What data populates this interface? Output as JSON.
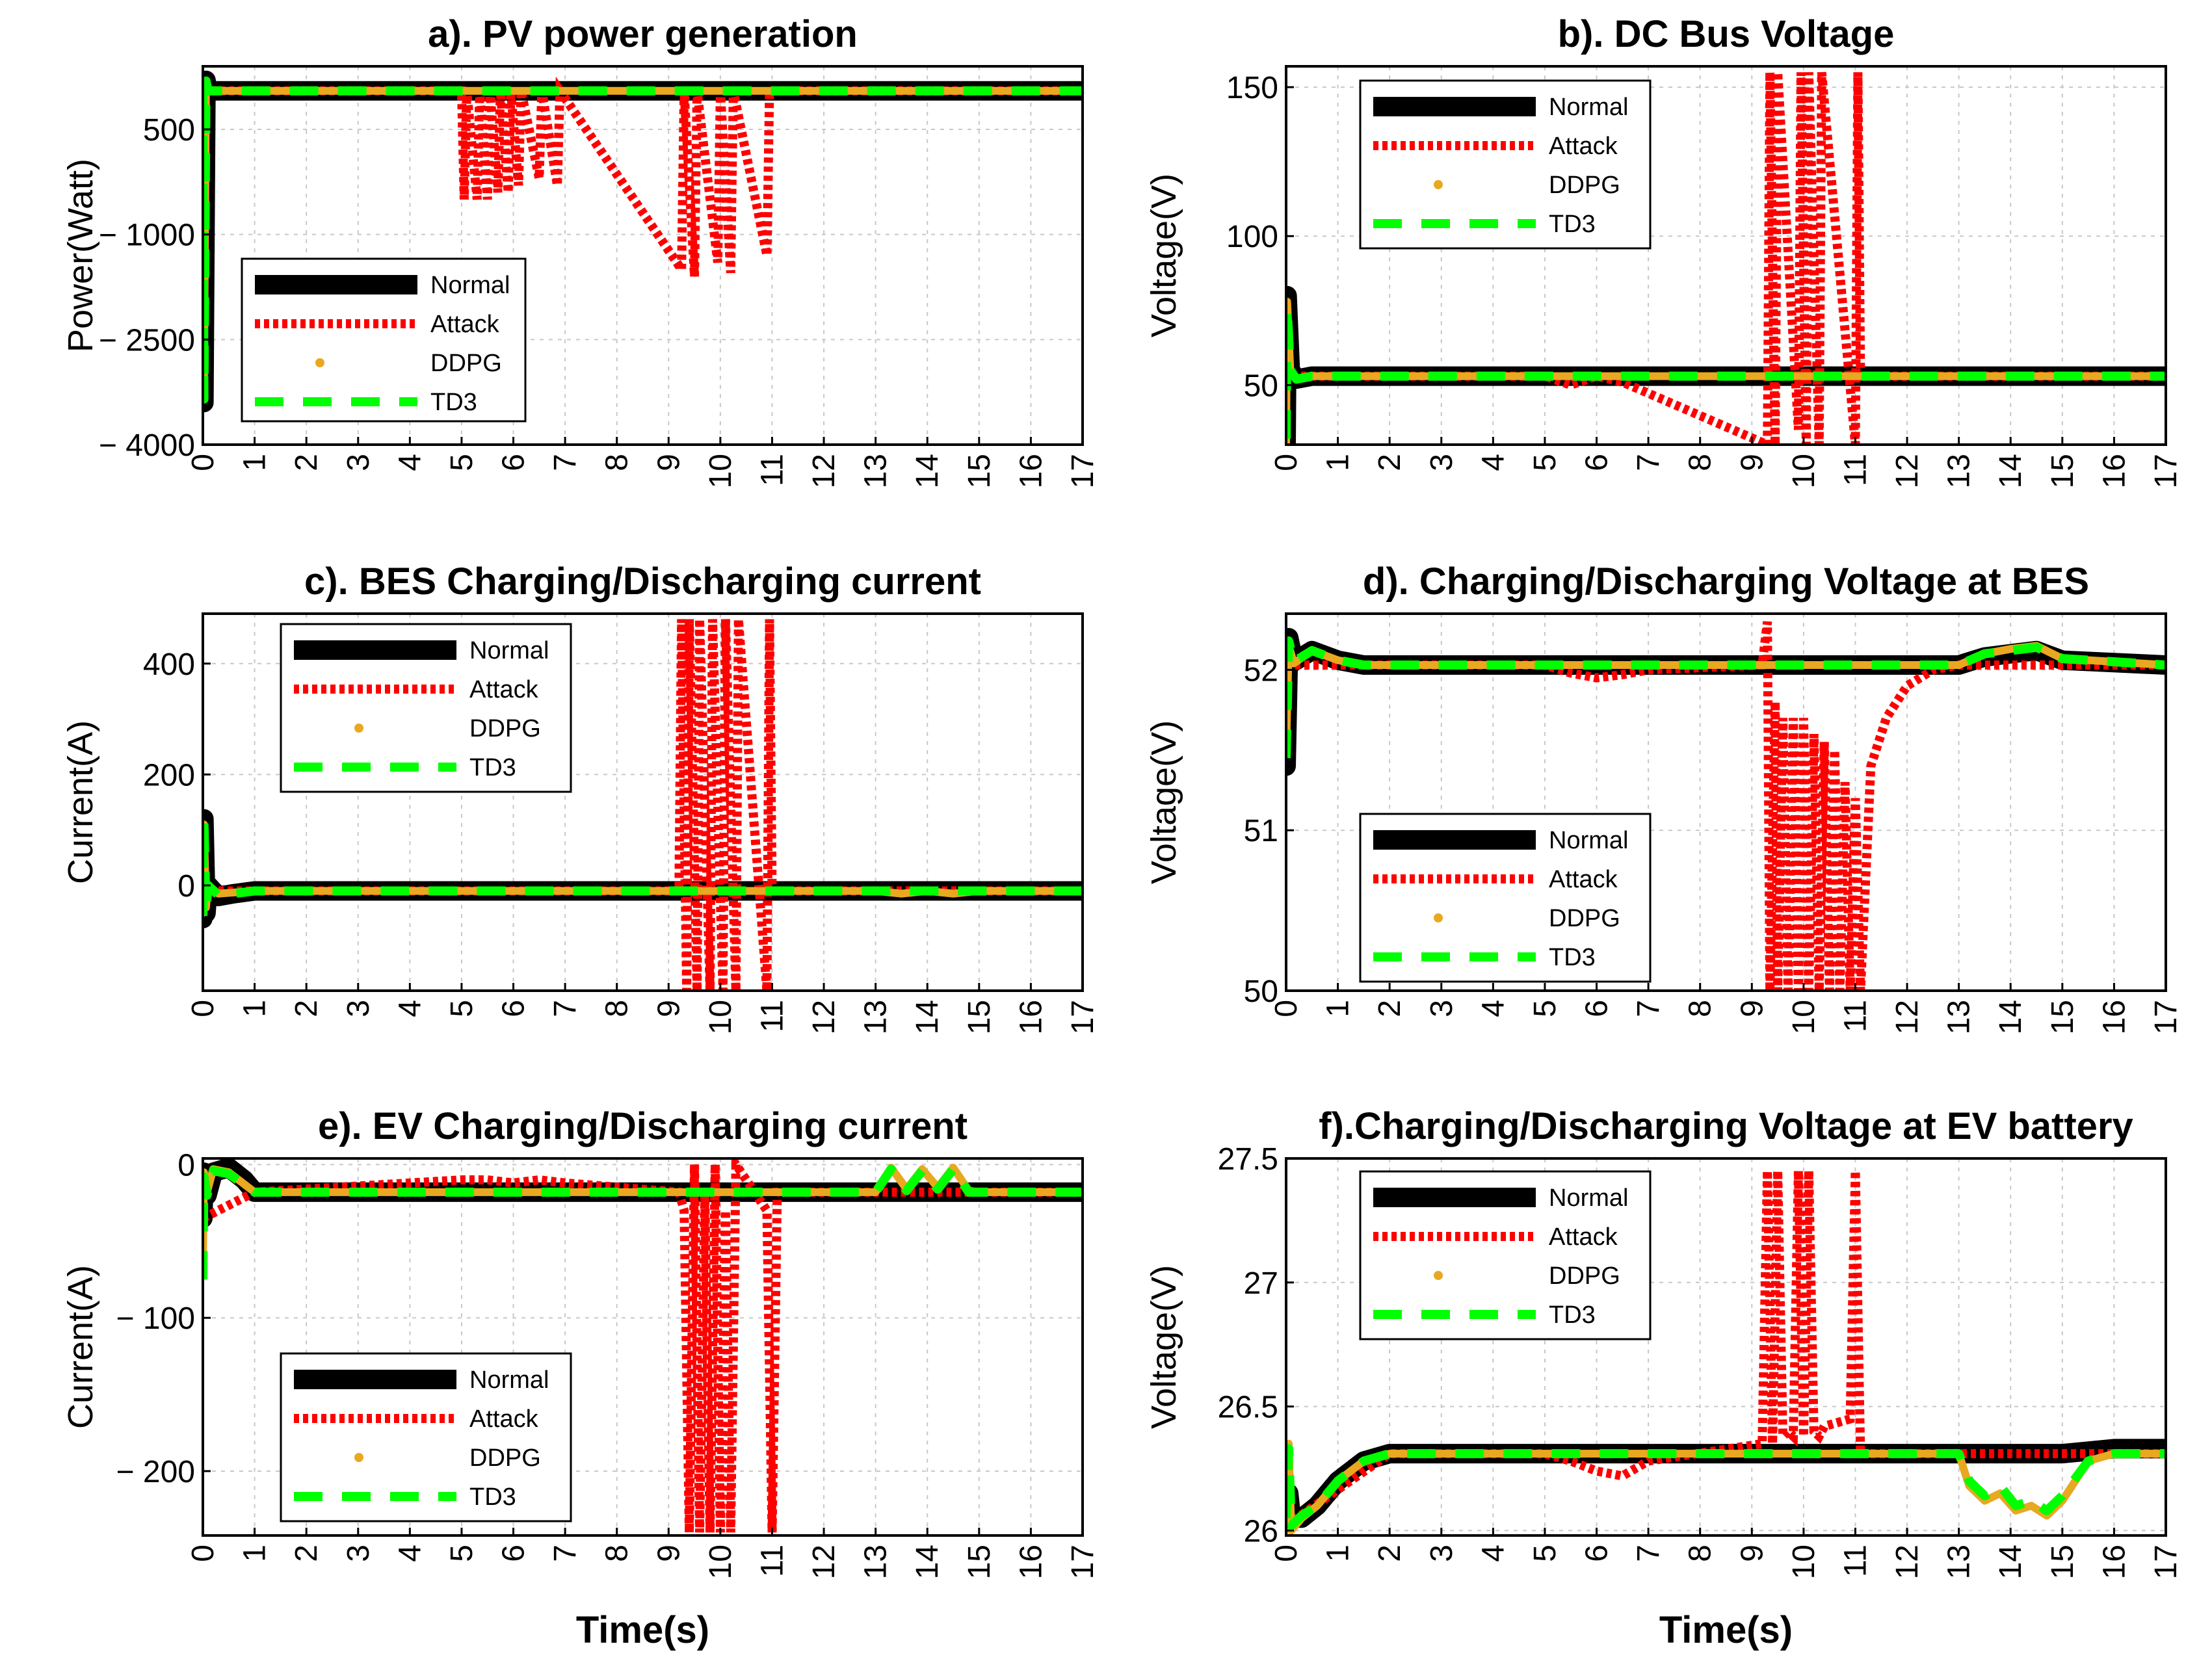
{
  "figure": {
    "x_tick_labels": [
      "0",
      "1",
      "2",
      "3",
      "4",
      "5",
      "6",
      "7",
      "8",
      "9",
      "10",
      "11",
      "12",
      "13",
      "14",
      "15",
      "16",
      "17"
    ],
    "x_label": "Time(s)"
  },
  "chart_data": [
    {
      "type": "line",
      "title": "a). PV power generation",
      "xlabel": "",
      "ylabel": "Power(Watt)",
      "xlim": [
        0,
        17
      ],
      "ylim": [
        -4000,
        1400
      ],
      "yticks": [
        500,
        -1000,
        -2500,
        -4000
      ],
      "ytick_labels": [
        "500",
        "− 1000",
        "− 2500",
        "− 4000"
      ],
      "legend": [
        "Normal",
        "Attack",
        "DDPG",
        "TD3"
      ],
      "legend_position": "lower-left",
      "series": [
        {
          "name": "Normal",
          "color": "#000000",
          "x": [
            0,
            0.02,
            0.06,
            0.1,
            17
          ],
          "y": [
            1100,
            -3400,
            1200,
            1050,
            1050
          ]
        },
        {
          "name": "Attack",
          "color": "#ff0000",
          "x": [
            0,
            0.1,
            5.0,
            5.05,
            5.1,
            5.3,
            5.35,
            5.5,
            5.55,
            5.7,
            5.75,
            5.9,
            5.95,
            6.1,
            6.15,
            6.5,
            6.55,
            6.85,
            6.9,
            9.25,
            9.3,
            9.5,
            9.55,
            9.95,
            10.0,
            10.2,
            10.25,
            10.9,
            10.95,
            17
          ],
          "y": [
            1100,
            1050,
            1050,
            -500,
            1050,
            -500,
            1050,
            -500,
            1050,
            -400,
            1050,
            -400,
            1050,
            -300,
            1050,
            -200,
            1050,
            -300,
            1050,
            -1500,
            1050,
            -1600,
            1050,
            -1400,
            1050,
            -1550,
            1050,
            -1300,
            1050,
            1050
          ]
        },
        {
          "name": "DDPG",
          "color": "#e8a820",
          "x": [
            0,
            0.02,
            0.06,
            0.1,
            17
          ],
          "y": [
            1100,
            -3300,
            1180,
            1050,
            1050
          ]
        },
        {
          "name": "TD3",
          "color": "#00ff00",
          "x": [
            0,
            0.02,
            0.06,
            0.1,
            17
          ],
          "y": [
            1100,
            -3350,
            1190,
            1050,
            1050
          ]
        }
      ]
    },
    {
      "type": "line",
      "title": "b). DC Bus Voltage",
      "xlabel": "",
      "ylabel": "Voltage(V)",
      "xlim": [
        0,
        17
      ],
      "ylim": [
        30,
        157
      ],
      "yticks": [
        50,
        100,
        150
      ],
      "ytick_labels": [
        "50",
        "100",
        "150"
      ],
      "legend": [
        "Normal",
        "Attack",
        "DDPG",
        "TD3"
      ],
      "legend_position": "top-left",
      "series": [
        {
          "name": "Normal",
          "color": "#000000",
          "x": [
            0,
            0.02,
            0.08,
            0.2,
            0.5,
            17
          ],
          "y": [
            30,
            80,
            55,
            52,
            53,
            53
          ]
        },
        {
          "name": "Attack",
          "color": "#ff0000",
          "x": [
            0,
            0.08,
            5.0,
            5.5,
            6.0,
            6.5,
            9.3,
            9.35,
            9.45,
            9.5,
            9.9,
            9.95,
            10.05,
            10.1,
            10.3,
            10.35,
            11.0,
            11.05,
            11.1,
            17
          ],
          "y": [
            55,
            53,
            53,
            50,
            53,
            51,
            30,
            155,
            30,
            155,
            35,
            155,
            30,
            155,
            30,
            155,
            30,
            155,
            53,
            53
          ]
        },
        {
          "name": "DDPG",
          "color": "#e8a820",
          "x": [
            0,
            0.02,
            0.08,
            0.2,
            0.5,
            17
          ],
          "y": [
            30,
            78,
            55,
            52,
            53,
            53
          ]
        },
        {
          "name": "TD3",
          "color": "#00ff00",
          "x": [
            0,
            0.02,
            0.08,
            0.2,
            0.5,
            17
          ],
          "y": [
            32,
            76,
            55,
            52,
            53,
            53
          ]
        }
      ]
    },
    {
      "type": "line",
      "title": "c). BES Charging/Discharging current",
      "xlabel": "",
      "ylabel": "Current(A)",
      "xlim": [
        0,
        17
      ],
      "ylim": [
        -190,
        490
      ],
      "yticks": [
        0,
        200,
        400
      ],
      "ytick_labels": [
        "0",
        "200",
        "400"
      ],
      "legend": [
        "Normal",
        "Attack",
        "DDPG",
        "TD3"
      ],
      "legend_position": "top-left",
      "series": [
        {
          "name": "Normal",
          "color": "#000000",
          "x": [
            0,
            0.02,
            0.06,
            0.1,
            0.3,
            0.6,
            1.0,
            17
          ],
          "y": [
            -60,
            120,
            -50,
            0,
            -20,
            -15,
            -10,
            -10
          ]
        },
        {
          "name": "Attack",
          "color": "#ff0000",
          "x": [
            0,
            0.1,
            9.2,
            9.25,
            9.35,
            9.4,
            9.55,
            9.6,
            9.8,
            9.85,
            10.05,
            10.1,
            10.3,
            10.35,
            10.9,
            10.95,
            11.0,
            17
          ],
          "y": [
            0,
            -10,
            -10,
            480,
            -190,
            480,
            -190,
            480,
            -190,
            480,
            -190,
            480,
            -190,
            480,
            -190,
            480,
            -10,
            -10
          ]
        },
        {
          "name": "DDPG",
          "color": "#e8a820",
          "x": [
            0,
            0.02,
            0.06,
            0.1,
            0.3,
            1.0,
            13.0,
            13.5,
            14.0,
            14.5,
            15.0,
            17
          ],
          "y": [
            -50,
            110,
            -40,
            0,
            -15,
            -10,
            -10,
            -15,
            -10,
            -15,
            -10,
            -10
          ]
        },
        {
          "name": "TD3",
          "color": "#00ff00",
          "x": [
            0,
            0.02,
            0.06,
            0.1,
            0.3,
            1.0,
            17
          ],
          "y": [
            -55,
            115,
            -45,
            0,
            -18,
            -10,
            -10
          ]
        }
      ]
    },
    {
      "type": "line",
      "title": "d). Charging/Discharging Voltage at BES",
      "xlabel": "",
      "ylabel": "Voltage(V)",
      "xlim": [
        0,
        17
      ],
      "ylim": [
        50,
        52.35
      ],
      "yticks": [
        50,
        51,
        52
      ],
      "ytick_labels": [
        "50",
        "51",
        "52"
      ],
      "legend": [
        "Normal",
        "Attack",
        "DDPG",
        "TD3"
      ],
      "legend_position": "bottom-left",
      "series": [
        {
          "name": "Normal",
          "color": "#000000",
          "x": [
            0,
            0.05,
            0.15,
            0.5,
            1.0,
            1.5,
            13.0,
            13.5,
            14.0,
            14.5,
            15.0,
            17
          ],
          "y": [
            51.4,
            52.2,
            52.05,
            52.12,
            52.06,
            52.03,
            52.03,
            52.08,
            52.1,
            52.12,
            52.06,
            52.03
          ]
        },
        {
          "name": "Attack",
          "color": "#ff0000",
          "x": [
            0,
            5.0,
            5.5,
            6.0,
            6.5,
            7.0,
            9.2,
            9.3,
            9.35,
            9.45,
            9.5,
            9.6,
            9.7,
            9.8,
            9.9,
            10.0,
            10.1,
            10.2,
            10.3,
            10.4,
            10.5,
            10.6,
            10.7,
            10.8,
            10.9,
            11.0,
            11.1,
            11.3,
            11.6,
            12.0,
            12.5,
            13.0,
            17
          ],
          "y": [
            52.03,
            52.03,
            51.98,
            51.95,
            51.97,
            52.0,
            52.03,
            52.3,
            50.0,
            51.8,
            50.0,
            51.7,
            50.0,
            51.7,
            50.0,
            51.7,
            50.0,
            51.6,
            50.0,
            51.55,
            50.0,
            51.5,
            50.0,
            51.3,
            50.0,
            51.2,
            50.0,
            51.4,
            51.7,
            51.9,
            52.0,
            52.03,
            52.03
          ]
        },
        {
          "name": "DDPG",
          "color": "#e8a820",
          "x": [
            0,
            0.05,
            0.15,
            0.5,
            1.0,
            1.5,
            13.0,
            13.5,
            14.0,
            14.5,
            15.0,
            17
          ],
          "y": [
            51.5,
            52.15,
            52.04,
            52.12,
            52.06,
            52.03,
            52.03,
            52.1,
            52.13,
            52.15,
            52.07,
            52.03
          ]
        },
        {
          "name": "TD3",
          "color": "#00ff00",
          "x": [
            0,
            0.05,
            0.15,
            0.5,
            1.0,
            1.5,
            13.0,
            13.5,
            14.0,
            14.5,
            15.0,
            17
          ],
          "y": [
            51.45,
            52.18,
            52.05,
            52.12,
            52.06,
            52.03,
            52.03,
            52.1,
            52.12,
            52.14,
            52.07,
            52.03
          ]
        }
      ]
    },
    {
      "type": "line",
      "title": "e). EV Charging/Discharging current",
      "xlabel": "Time(s)",
      "ylabel": "Current(A)",
      "xlim": [
        0,
        17
      ],
      "ylim": [
        -242,
        4
      ],
      "yticks": [
        0,
        -100,
        -200
      ],
      "ytick_labels": [
        "0",
        "− 100",
        "− 200"
      ],
      "legend": [
        "Normal",
        "Attack",
        "DDPG",
        "TD3"
      ],
      "legend_position": "bottom-left",
      "series": [
        {
          "name": "Normal",
          "color": "#000000",
          "x": [
            0,
            0.02,
            0.08,
            0.2,
            0.5,
            0.8,
            1.0,
            17
          ],
          "y": [
            -35,
            -5,
            -20,
            -5,
            -2,
            -10,
            -18,
            -18
          ]
        },
        {
          "name": "Attack",
          "color": "#ff0000",
          "x": [
            0,
            1.0,
            5.0,
            5.5,
            6.0,
            6.5,
            7.0,
            9.2,
            9.3,
            9.4,
            9.5,
            9.6,
            9.7,
            9.8,
            9.9,
            10.0,
            10.1,
            10.2,
            10.3,
            10.9,
            11.0,
            11.1,
            17
          ],
          "y": [
            -35,
            -18,
            -10,
            -10,
            -12,
            -10,
            -12,
            -18,
            -30,
            -240,
            0,
            -240,
            -20,
            -240,
            0,
            -240,
            -30,
            -240,
            0,
            -30,
            -240,
            -18,
            -18
          ]
        },
        {
          "name": "DDPG",
          "color": "#e8a820",
          "x": [
            0,
            0.02,
            0.08,
            0.2,
            0.5,
            1.0,
            13.0,
            13.3,
            13.6,
            13.9,
            14.2,
            14.5,
            14.8,
            15.0,
            17
          ],
          "y": [
            -70,
            -5,
            -18,
            -3,
            -5,
            -18,
            -18,
            -2,
            -16,
            -3,
            -15,
            -2,
            -17,
            -18,
            -18
          ]
        },
        {
          "name": "TD3",
          "color": "#00ff00",
          "x": [
            0,
            0.02,
            0.08,
            0.2,
            0.5,
            1.0,
            13.0,
            13.3,
            13.6,
            13.9,
            14.2,
            14.5,
            14.8,
            15.0,
            17
          ],
          "y": [
            -75,
            -8,
            -20,
            -4,
            -6,
            -18,
            -18,
            -3,
            -17,
            -4,
            -16,
            -3,
            -18,
            -18,
            -18
          ]
        }
      ]
    },
    {
      "type": "line",
      "title": "f).Charging/Discharging Voltage at EV battery",
      "xlabel": "Time(s)",
      "ylabel": "Voltage(V)",
      "xlim": [
        0,
        17
      ],
      "ylim": [
        25.98,
        27.5
      ],
      "yticks": [
        26,
        26.5,
        27,
        27.5
      ],
      "ytick_labels": [
        "26",
        "26.5",
        "27",
        "27.5"
      ],
      "legend": [
        "Normal",
        "Attack",
        "DDPG",
        "TD3"
      ],
      "legend_position": "top-left",
      "series": [
        {
          "name": "Normal",
          "color": "#000000",
          "x": [
            0,
            0.05,
            0.1,
            0.3,
            0.6,
            1.0,
            1.5,
            2.0,
            13.0,
            15.0,
            15.5,
            16.0,
            17
          ],
          "y": [
            26.1,
            26.15,
            26.05,
            26.05,
            26.1,
            26.2,
            26.28,
            26.31,
            26.31,
            26.31,
            26.32,
            26.33,
            26.33
          ]
        },
        {
          "name": "Attack",
          "color": "#ff0000",
          "x": [
            0,
            2.0,
            5.0,
            5.5,
            6.0,
            6.5,
            7.0,
            9.2,
            9.3,
            9.4,
            9.5,
            9.6,
            9.7,
            9.8,
            9.9,
            10.0,
            10.1,
            10.2,
            10.3,
            10.4,
            10.9,
            11.0,
            11.1,
            17
          ],
          "y": [
            26.02,
            26.31,
            26.31,
            26.28,
            26.24,
            26.22,
            26.28,
            26.35,
            27.45,
            26.35,
            27.45,
            26.38,
            26.4,
            26.38,
            27.45,
            26.38,
            27.45,
            26.4,
            26.38,
            26.42,
            26.45,
            27.45,
            26.31,
            26.31
          ]
        },
        {
          "name": "DDPG",
          "color": "#e8a820",
          "x": [
            0,
            0.05,
            0.1,
            0.3,
            0.6,
            1.0,
            1.5,
            2.0,
            13.0,
            13.2,
            13.5,
            13.8,
            14.1,
            14.4,
            14.7,
            15.0,
            15.5,
            16.0,
            17
          ],
          "y": [
            26.0,
            26.35,
            26.0,
            26.05,
            26.1,
            26.2,
            26.28,
            26.31,
            26.31,
            26.18,
            26.12,
            26.15,
            26.08,
            26.1,
            26.06,
            26.12,
            26.28,
            26.31,
            26.31
          ]
        },
        {
          "name": "TD3",
          "color": "#00ff00",
          "x": [
            0,
            0.05,
            0.1,
            0.3,
            0.6,
            1.0,
            1.5,
            2.0,
            13.0,
            13.2,
            13.5,
            13.8,
            14.1,
            14.4,
            14.7,
            15.0,
            15.5,
            16.0,
            17
          ],
          "y": [
            26.05,
            26.33,
            26.02,
            26.06,
            26.1,
            26.2,
            26.28,
            26.31,
            26.31,
            26.2,
            26.14,
            26.18,
            26.1,
            26.12,
            26.08,
            26.14,
            26.28,
            26.31,
            26.31
          ]
        }
      ]
    }
  ]
}
